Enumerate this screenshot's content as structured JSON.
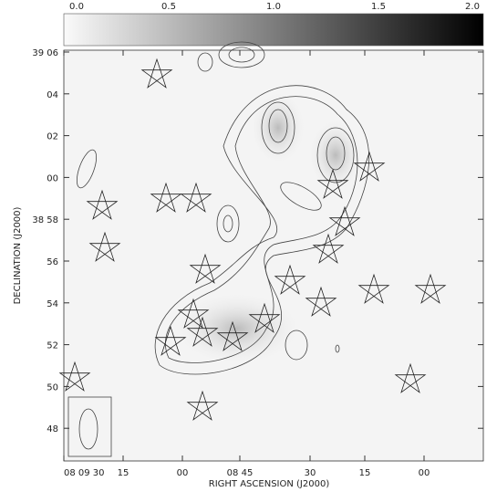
{
  "colorbar": {
    "ticks": [
      "0.0",
      "0.5",
      "1.0",
      "1.5",
      "2.0"
    ]
  },
  "y_axis": {
    "title": "DECLINATION (J2000)",
    "ticks": [
      "39 06",
      "04",
      "02",
      "00",
      "38 58",
      "56",
      "54",
      "52",
      "50",
      "48"
    ]
  },
  "x_axis": {
    "title": "RIGHT ASCENSION (J2000)",
    "ticks": [
      "08 09 30",
      "15",
      "00",
      "08 45",
      "30",
      "15",
      "00"
    ]
  }
}
